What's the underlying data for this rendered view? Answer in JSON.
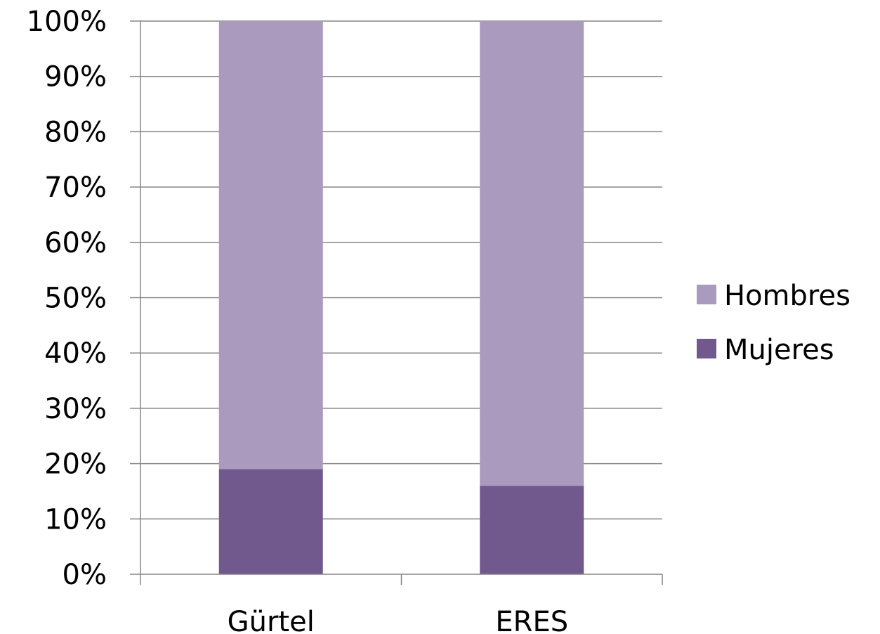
{
  "chart_data": {
    "type": "bar",
    "stacked": true,
    "percent_stacked": true,
    "categories": [
      "Gürtel",
      "ERES"
    ],
    "series": [
      {
        "name": "Mujeres",
        "values": [
          19,
          16
        ],
        "color": "#71598d"
      },
      {
        "name": "Hombres",
        "values": [
          81,
          84
        ],
        "color": "#a99abe"
      }
    ],
    "ylim": [
      0,
      100
    ],
    "y_ticks": [
      "0%",
      "10%",
      "20%",
      "30%",
      "40%",
      "50%",
      "60%",
      "70%",
      "80%",
      "90%",
      "100%"
    ],
    "grid": true,
    "legend": {
      "position": "right",
      "entries": [
        "Hombres",
        "Mujeres"
      ]
    },
    "title": "",
    "xlabel": "",
    "ylabel": ""
  }
}
